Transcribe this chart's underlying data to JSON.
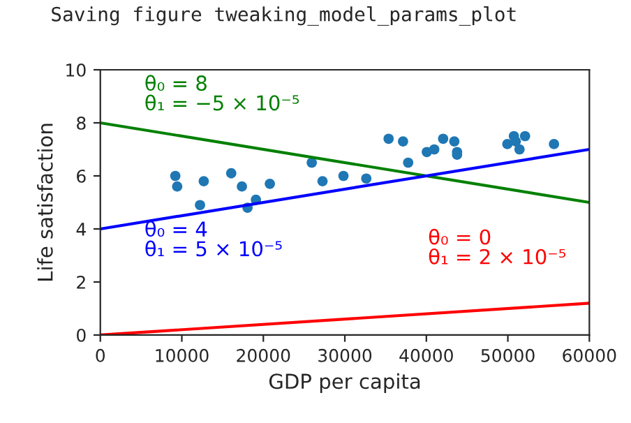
{
  "chart_data": {
    "type": "scatter",
    "annotations": [
      "Saving figure tweaking_model_params_plot"
    ],
    "xlabel": "GDP per capita",
    "ylabel": "Life satisfaction",
    "xlim": [
      0,
      60000
    ],
    "xticks": [
      0,
      10000,
      20000,
      30000,
      40000,
      50000,
      60000
    ],
    "ylim": [
      0,
      10
    ],
    "yticks": [
      0,
      2,
      4,
      6,
      8,
      10
    ],
    "grid": false,
    "legend": false,
    "series": [
      {
        "marker": "circle",
        "color": "#1f77b4",
        "x": [
          9200,
          9430,
          12230,
          12690,
          16060,
          17370,
          18060,
          19090,
          20800,
          25940,
          27260,
          29830,
          32630,
          35370,
          37140,
          37770,
          40060,
          40970,
          42060,
          43430,
          43770,
          43770,
          49940,
          50740,
          50970,
          51430,
          52110,
          55660
        ],
        "values": [
          6.0,
          5.6,
          4.9,
          5.8,
          6.1,
          5.6,
          4.8,
          5.1,
          5.7,
          6.5,
          5.8,
          6.0,
          5.9,
          7.4,
          7.3,
          6.5,
          6.9,
          7.0,
          7.4,
          7.3,
          6.9,
          6.8,
          7.2,
          7.5,
          7.3,
          7.0,
          7.5,
          7.2
        ]
      },
      {
        "type": "line",
        "name": "θ₀ = 0\nθ₁ = 2 × 10⁻⁵",
        "color": "#ff0000",
        "marker": "none",
        "x": [
          0,
          60000
        ],
        "values": [
          0,
          1.2
        ]
      },
      {
        "type": "line",
        "name": "θ₀ = 8\nθ₁ = −5 × 10⁻⁵",
        "color": "#008000",
        "marker": "none",
        "x": [
          0,
          60000
        ],
        "values": [
          8,
          5
        ]
      },
      {
        "type": "line",
        "name": "θ₀ = 4\nθ₁ = 5 × 10⁻⁵",
        "color": "#0000ff",
        "marker": "none",
        "x": [
          0,
          60000
        ],
        "values": [
          4,
          7
        ]
      }
    ]
  }
}
